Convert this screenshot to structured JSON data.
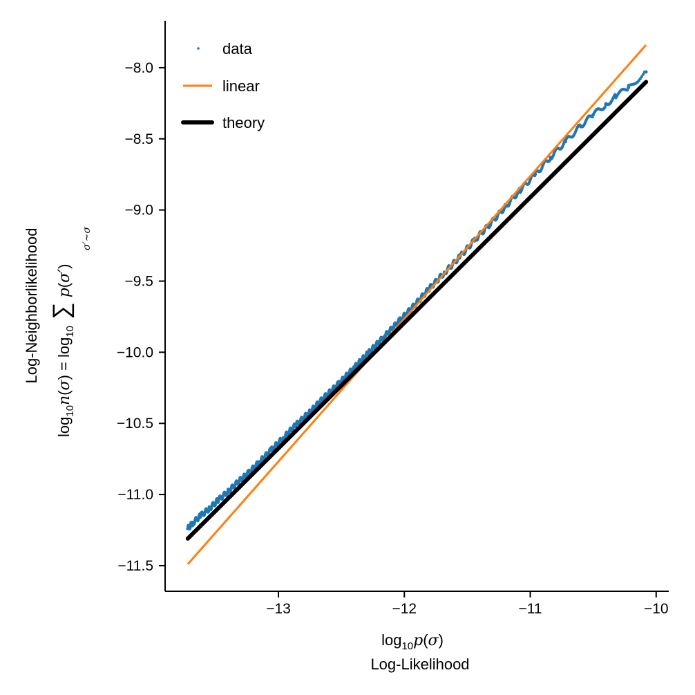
{
  "chart_data": {
    "type": "scatter",
    "xlabel_math": "log10p(σ)",
    "xlabel": "Log-Likelihood",
    "ylabel": "Log-Neighborlikelihood",
    "ylabel_math": "log10n(σ) = log10 Σσ'∼σ p(σ')",
    "xlim": [
      -13.9,
      -9.9
    ],
    "ylim": [
      -11.68,
      -7.67
    ],
    "xticks": [
      -13,
      -12,
      -11,
      -10
    ],
    "yticks": [
      -11.5,
      -11.0,
      -10.5,
      -10.0,
      -9.5,
      -9.0,
      -8.5,
      -8.0
    ],
    "grid": false,
    "legend": {
      "position": "top-left",
      "entries": [
        {
          "label": "data",
          "marker": "dot",
          "color": "#1f77b4"
        },
        {
          "label": "linear",
          "marker": "line",
          "color": "#ff7f0e"
        },
        {
          "label": "theory",
          "marker": "thick-line",
          "color": "#000000"
        }
      ]
    },
    "series": [
      {
        "name": "data",
        "kind": "scatter",
        "color": "#1f77b4",
        "x": [
          -13.72,
          -13.68,
          -13.62,
          -13.55,
          -13.48,
          -13.4,
          -13.32,
          -13.24,
          -13.15,
          -13.06,
          -12.96,
          -12.86,
          -12.75,
          -12.64,
          -12.52,
          -12.4,
          -12.28,
          -12.16,
          -12.04,
          -11.92,
          -11.8,
          -11.68,
          -11.56,
          -11.44,
          -11.32,
          -11.2,
          -11.08,
          -10.96,
          -10.84,
          -10.72,
          -10.6,
          -10.5,
          -10.4,
          -10.32,
          -10.22,
          -10.08
        ],
        "y": [
          -11.24,
          -11.2,
          -11.15,
          -11.1,
          -11.04,
          -10.98,
          -10.91,
          -10.85,
          -10.77,
          -10.69,
          -10.6,
          -10.51,
          -10.42,
          -10.32,
          -10.22,
          -10.11,
          -10.0,
          -9.89,
          -9.78,
          -9.67,
          -9.55,
          -9.44,
          -9.33,
          -9.21,
          -9.1,
          -8.98,
          -8.86,
          -8.75,
          -8.63,
          -8.52,
          -8.41,
          -8.33,
          -8.26,
          -8.2,
          -8.14,
          -8.03
        ]
      },
      {
        "name": "linear",
        "kind": "line",
        "color": "#ff7f0e",
        "x": [
          -13.72,
          -10.08
        ],
        "y": [
          -11.49,
          -7.84
        ]
      },
      {
        "name": "theory",
        "kind": "line",
        "color": "#000000",
        "x": [
          -13.72,
          -10.08
        ],
        "y": [
          -11.31,
          -8.1
        ]
      }
    ]
  }
}
